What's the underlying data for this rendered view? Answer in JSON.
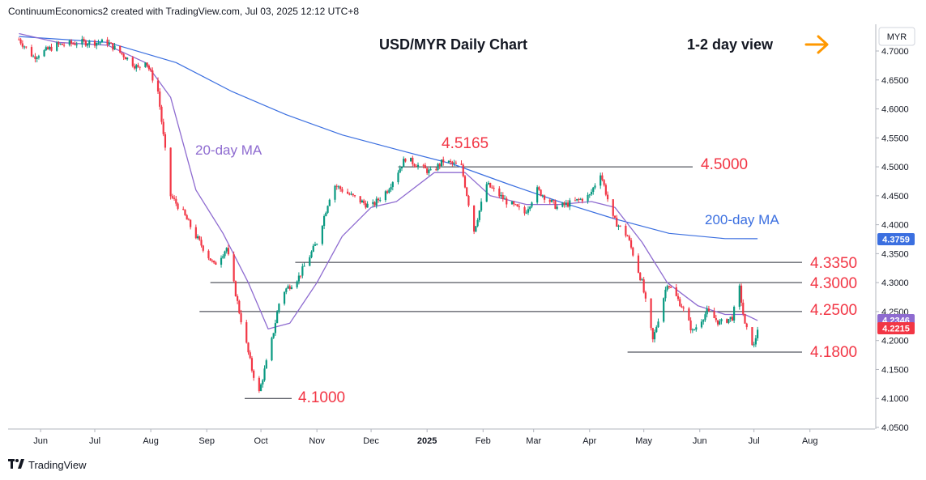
{
  "header": {
    "attribution": "ContinuumEconomics2 created with TradingView.com, Jul 03, 2025 12:12 UTC+8"
  },
  "footer": {
    "logo_text": "TradingView"
  },
  "colors": {
    "up": "#089981",
    "down": "#f23645",
    "ma20": "#8e6bd0",
    "ma200": "#3b6fe0",
    "level_line": "#2a2e39",
    "level_text": "#f23645",
    "arrow": "#ff9800"
  },
  "chart_data": {
    "type": "candlestick",
    "title": "USD/MYR Daily Chart",
    "subtitle": "1-2 day view",
    "currency_label": "MYR",
    "ylim": [
      4.04,
      4.74
    ],
    "y_ticks": [
      "4.7000",
      "4.6500",
      "4.6000",
      "4.5500",
      "4.5000",
      "4.4500",
      "4.4000",
      "4.3500",
      "4.3000",
      "4.2500",
      "4.2000",
      "4.1500",
      "4.1000",
      "4.0500"
    ],
    "x_ticks": [
      "Jun",
      "Jul",
      "Aug",
      "Sep",
      "Oct",
      "Nov",
      "Dec",
      "2025",
      "Feb",
      "Mar",
      "Apr",
      "May",
      "Jun",
      "Jul",
      "Aug"
    ],
    "price_tags": [
      {
        "label": "4.3759",
        "color": "#3b6fe0"
      },
      {
        "label": "4.2346",
        "color": "#8e6bd0"
      },
      {
        "label": "4.2215",
        "color": "#f23645"
      }
    ],
    "levels": [
      {
        "label": "4.5165",
        "value": 4.5165
      },
      {
        "label": "4.5000",
        "value": 4.5
      },
      {
        "label": "4.3350",
        "value": 4.335
      },
      {
        "label": "4.3000",
        "value": 4.3
      },
      {
        "label": "4.2500",
        "value": 4.25
      },
      {
        "label": "4.1800",
        "value": 4.18
      },
      {
        "label": "4.1000",
        "value": 4.1
      }
    ],
    "annotations": [
      {
        "label": "20-day MA"
      },
      {
        "label": "200-day MA"
      }
    ],
    "close_path": [
      {
        "date": "2024-05-20",
        "value": 4.72
      },
      {
        "date": "2024-05-28",
        "value": 4.69
      },
      {
        "date": "2024-06-10",
        "value": 4.71
      },
      {
        "date": "2024-06-24",
        "value": 4.715
      },
      {
        "date": "2024-07-08",
        "value": 4.715
      },
      {
        "date": "2024-07-18",
        "value": 4.69
      },
      {
        "date": "2024-07-25",
        "value": 4.67
      },
      {
        "date": "2024-07-29",
        "value": 4.685
      },
      {
        "date": "2024-08-05",
        "value": 4.63
      },
      {
        "date": "2024-08-12",
        "value": 4.45
      },
      {
        "date": "2024-08-19",
        "value": 4.42
      },
      {
        "date": "2024-08-26",
        "value": 4.38
      },
      {
        "date": "2024-09-05",
        "value": 4.33
      },
      {
        "date": "2024-09-12",
        "value": 4.36
      },
      {
        "date": "2024-09-19",
        "value": 4.25
      },
      {
        "date": "2024-09-26",
        "value": 4.15
      },
      {
        "date": "2024-09-30",
        "value": 4.11
      },
      {
        "date": "2024-10-07",
        "value": 4.2
      },
      {
        "date": "2024-10-12",
        "value": 4.28
      },
      {
        "date": "2024-10-22",
        "value": 4.31
      },
      {
        "date": "2024-11-01",
        "value": 4.37
      },
      {
        "date": "2024-11-10",
        "value": 4.47
      },
      {
        "date": "2024-11-20",
        "value": 4.45
      },
      {
        "date": "2024-12-01",
        "value": 4.43
      },
      {
        "date": "2024-12-10",
        "value": 4.46
      },
      {
        "date": "2024-12-20",
        "value": 4.515
      },
      {
        "date": "2025-01-03",
        "value": 4.49
      },
      {
        "date": "2025-01-10",
        "value": 4.51
      },
      {
        "date": "2025-01-20",
        "value": 4.5
      },
      {
        "date": "2025-01-27",
        "value": 4.39
      },
      {
        "date": "2025-02-03",
        "value": 4.47
      },
      {
        "date": "2025-02-14",
        "value": 4.44
      },
      {
        "date": "2025-02-24",
        "value": 4.42
      },
      {
        "date": "2025-03-03",
        "value": 4.46
      },
      {
        "date": "2025-03-14",
        "value": 4.43
      },
      {
        "date": "2025-03-24",
        "value": 4.44
      },
      {
        "date": "2025-04-01",
        "value": 4.45
      },
      {
        "date": "2025-04-07",
        "value": 4.49
      },
      {
        "date": "2025-04-14",
        "value": 4.41
      },
      {
        "date": "2025-04-22",
        "value": 4.38
      },
      {
        "date": "2025-04-30",
        "value": 4.3
      },
      {
        "date": "2025-05-06",
        "value": 4.2
      },
      {
        "date": "2025-05-14",
        "value": 4.3
      },
      {
        "date": "2025-05-22",
        "value": 4.26
      },
      {
        "date": "2025-05-28",
        "value": 4.215
      },
      {
        "date": "2025-06-05",
        "value": 4.25
      },
      {
        "date": "2025-06-12",
        "value": 4.23
      },
      {
        "date": "2025-06-19",
        "value": 4.24
      },
      {
        "date": "2025-06-23",
        "value": 4.29
      },
      {
        "date": "2025-06-26",
        "value": 4.225
      },
      {
        "date": "2025-07-01",
        "value": 4.19
      },
      {
        "date": "2025-07-03",
        "value": 4.2215
      }
    ],
    "ma20": [
      {
        "date": "2024-05-20",
        "value": 4.73
      },
      {
        "date": "2024-06-10",
        "value": 4.715
      },
      {
        "date": "2024-07-08",
        "value": 4.71
      },
      {
        "date": "2024-07-29",
        "value": 4.68
      },
      {
        "date": "2024-08-12",
        "value": 4.62
      },
      {
        "date": "2024-08-26",
        "value": 4.46
      },
      {
        "date": "2024-09-10",
        "value": 4.385
      },
      {
        "date": "2024-09-24",
        "value": 4.3
      },
      {
        "date": "2024-10-05",
        "value": 4.22
      },
      {
        "date": "2024-10-17",
        "value": 4.23
      },
      {
        "date": "2024-11-01",
        "value": 4.3
      },
      {
        "date": "2024-11-15",
        "value": 4.38
      },
      {
        "date": "2024-12-01",
        "value": 4.43
      },
      {
        "date": "2024-12-15",
        "value": 4.44
      },
      {
        "date": "2025-01-05",
        "value": 4.49
      },
      {
        "date": "2025-01-22",
        "value": 4.49
      },
      {
        "date": "2025-02-05",
        "value": 4.45
      },
      {
        "date": "2025-02-25",
        "value": 4.435
      },
      {
        "date": "2025-03-15",
        "value": 4.435
      },
      {
        "date": "2025-04-02",
        "value": 4.44
      },
      {
        "date": "2025-04-15",
        "value": 4.43
      },
      {
        "date": "2025-04-30",
        "value": 4.37
      },
      {
        "date": "2025-05-14",
        "value": 4.3
      },
      {
        "date": "2025-05-31",
        "value": 4.26
      },
      {
        "date": "2025-06-15",
        "value": 4.245
      },
      {
        "date": "2025-06-26",
        "value": 4.245
      },
      {
        "date": "2025-07-03",
        "value": 4.2346
      }
    ],
    "ma200": [
      {
        "date": "2024-05-20",
        "value": 4.725
      },
      {
        "date": "2024-07-08",
        "value": 4.715
      },
      {
        "date": "2024-08-15",
        "value": 4.68
      },
      {
        "date": "2024-09-15",
        "value": 4.63
      },
      {
        "date": "2024-10-15",
        "value": 4.59
      },
      {
        "date": "2024-11-15",
        "value": 4.555
      },
      {
        "date": "2024-12-15",
        "value": 4.53
      },
      {
        "date": "2025-01-15",
        "value": 4.505
      },
      {
        "date": "2025-02-15",
        "value": 4.47
      },
      {
        "date": "2025-03-15",
        "value": 4.44
      },
      {
        "date": "2025-04-15",
        "value": 4.41
      },
      {
        "date": "2025-05-15",
        "value": 4.385
      },
      {
        "date": "2025-06-15",
        "value": 4.376
      },
      {
        "date": "2025-07-03",
        "value": 4.3759
      }
    ]
  }
}
